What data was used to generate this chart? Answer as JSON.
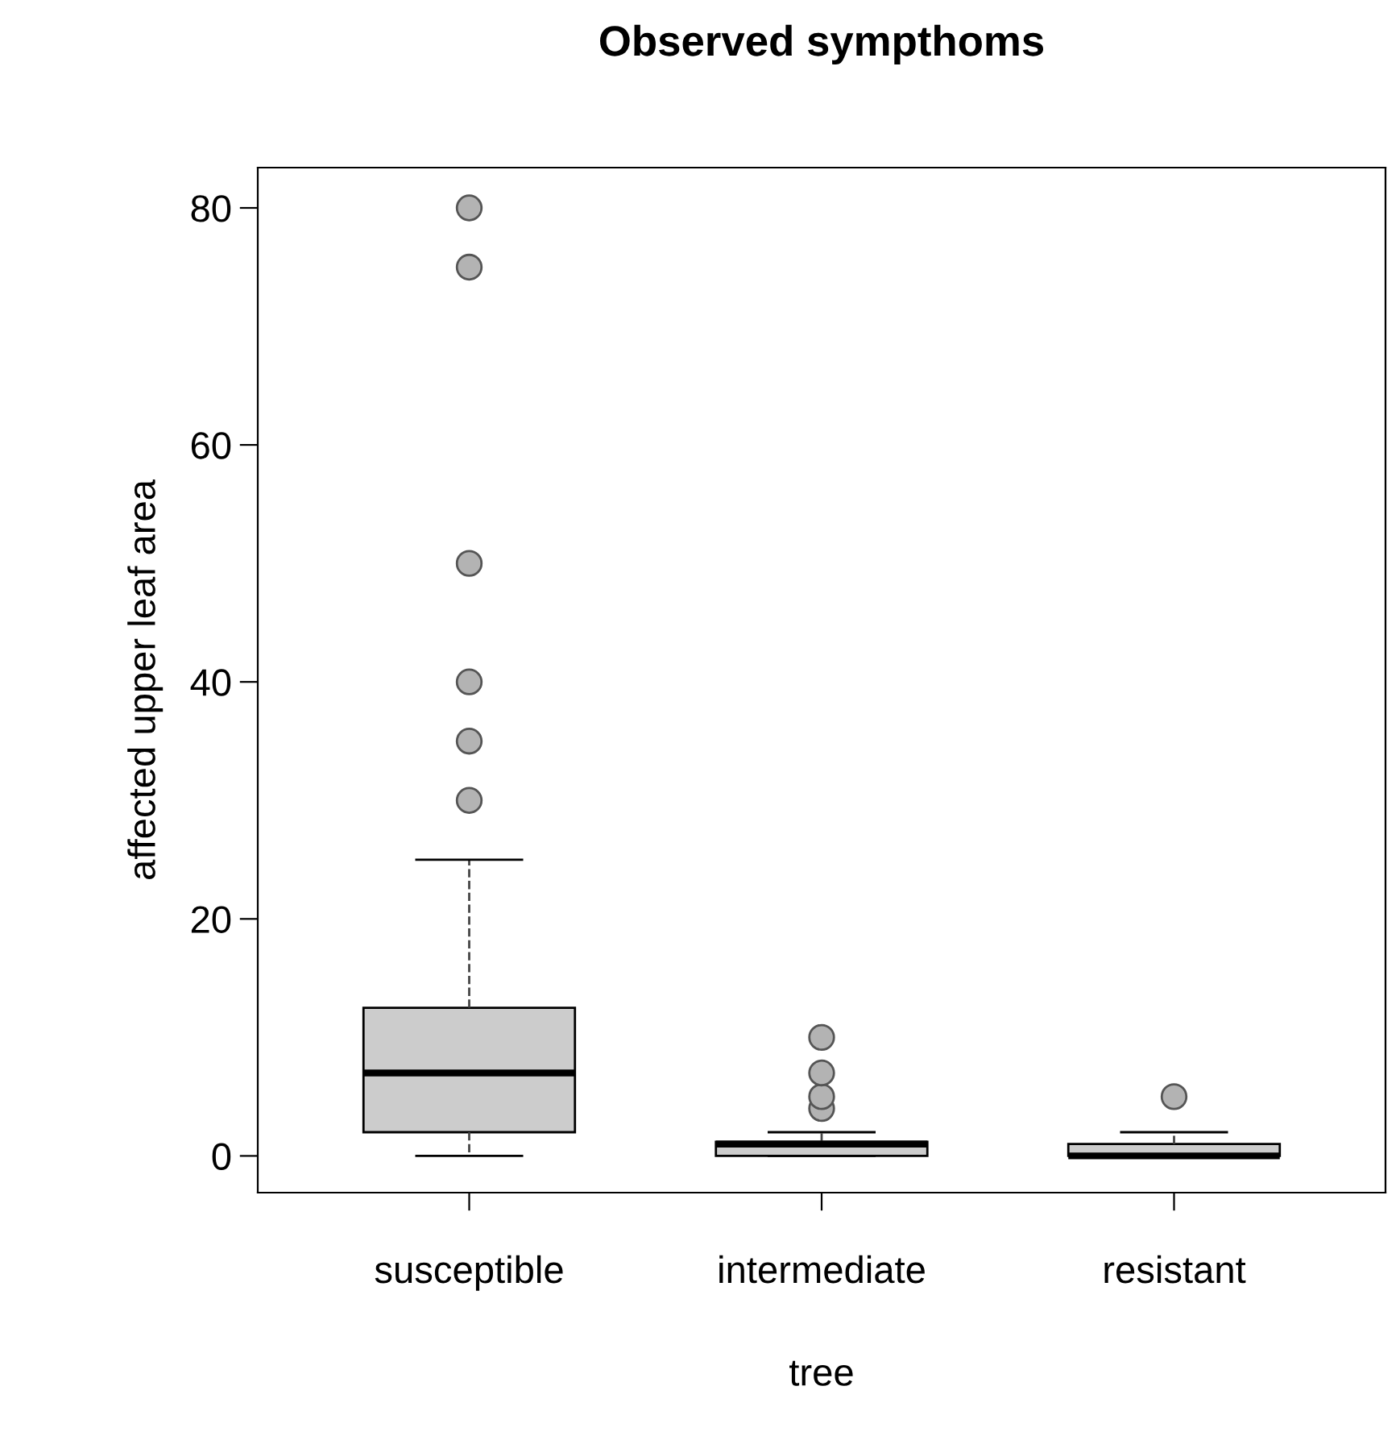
{
  "chart_data": {
    "type": "box",
    "title": "Observed sympthoms",
    "xlabel": "tree",
    "ylabel": "affected upper leaf area",
    "categories": [
      "susceptible",
      "intermediate",
      "resistant"
    ],
    "boxes": [
      {
        "low": 0,
        "q1": 2,
        "median": 7,
        "q3": 12.5,
        "high": 25,
        "outliers": [
          30,
          35,
          40,
          50,
          75,
          80
        ]
      },
      {
        "low": 0,
        "q1": 0,
        "median": 1,
        "q3": 1.2,
        "high": 2,
        "outliers": [
          4,
          5,
          7,
          10
        ]
      },
      {
        "low": 0,
        "q1": 0,
        "median": 0,
        "q3": 1,
        "high": 2,
        "outliers": [
          5
        ]
      }
    ],
    "color": "#cccccc",
    "ylim": [
      -3.1,
      83.4
    ],
    "yticks": [
      0,
      20,
      40,
      60,
      80
    ],
    "grid": false
  }
}
